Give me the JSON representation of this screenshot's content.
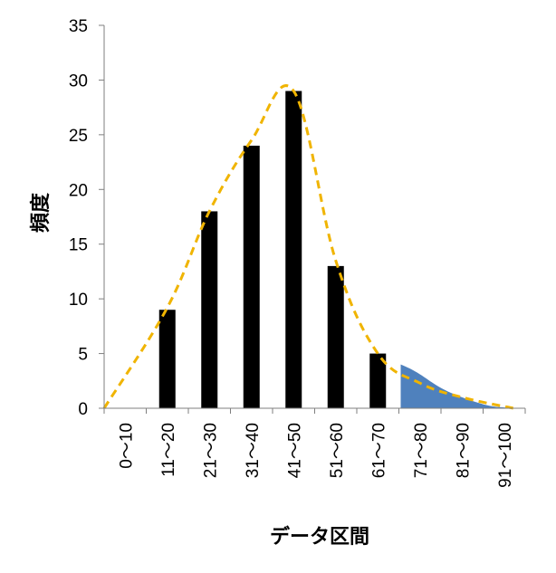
{
  "chart_data": {
    "type": "bar",
    "categories": [
      "0～10",
      "11～20",
      "21～30",
      "31～40",
      "41～50",
      "51～60",
      "61～70",
      "71～80",
      "81～90",
      "91～100"
    ],
    "values": [
      0,
      9,
      18,
      24,
      29,
      13,
      5,
      0,
      0,
      0
    ],
    "xlabel": "データ区間",
    "ylabel": "頻度",
    "ylim": [
      0,
      35
    ],
    "yticks": [
      0,
      5,
      10,
      15,
      20,
      25,
      30,
      35
    ],
    "grid": false,
    "legend": "none",
    "bar_color": "#000000",
    "curve": {
      "style": "dashed",
      "color": "#F0B400",
      "y_at_category": [
        0,
        9.2,
        18,
        24.5,
        29,
        13.5,
        5,
        2.3,
        1,
        0
      ]
    },
    "shaded_tail": {
      "color": "#4F81BD",
      "from_category": "71～80",
      "to_category": "91～100"
    }
  }
}
